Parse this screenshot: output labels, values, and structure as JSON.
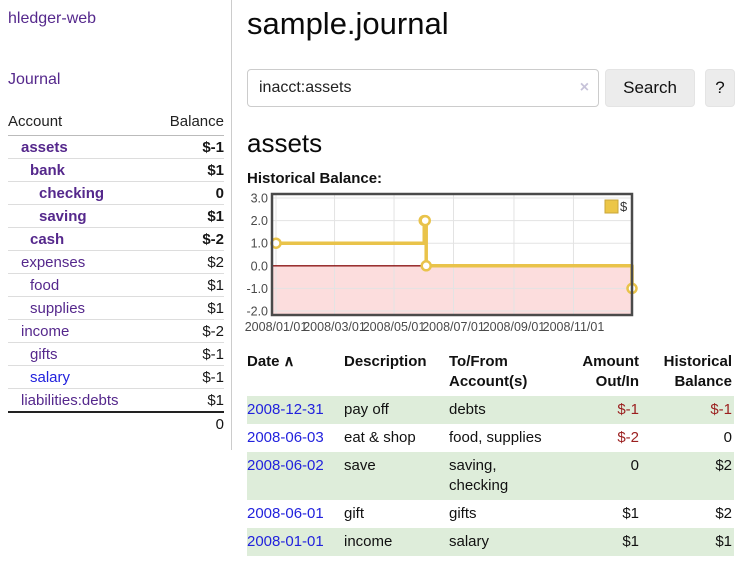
{
  "app": {
    "title": "hledger-web",
    "nav_journal_label": "Journal"
  },
  "sidebar": {
    "accounts_header": {
      "account": "Account",
      "balance": "Balance"
    },
    "accounts": [
      {
        "name": "assets",
        "depth": 1,
        "bold": true,
        "balance": "$-1",
        "link_color": "purple"
      },
      {
        "name": "bank",
        "depth": 2,
        "bold": true,
        "balance": "$1",
        "link_color": "purple"
      },
      {
        "name": "checking",
        "depth": 3,
        "bold": true,
        "balance": "0",
        "link_color": "purple"
      },
      {
        "name": "saving",
        "depth": 3,
        "bold": true,
        "balance": "$1",
        "link_color": "purple"
      },
      {
        "name": "cash",
        "depth": 2,
        "bold": true,
        "balance": "$-2",
        "link_color": "purple"
      },
      {
        "name": "expenses",
        "depth": 1,
        "bold": false,
        "balance": "$2",
        "link_color": "purple"
      },
      {
        "name": "food",
        "depth": 2,
        "bold": false,
        "balance": "$1",
        "link_color": "purple"
      },
      {
        "name": "supplies",
        "depth": 2,
        "bold": false,
        "balance": "$1",
        "link_color": "purple"
      },
      {
        "name": "income",
        "depth": 1,
        "bold": false,
        "balance": "$-2",
        "link_color": "purple"
      },
      {
        "name": "gifts",
        "depth": 2,
        "bold": false,
        "balance": "$-1",
        "link_color": "purple"
      },
      {
        "name": "salary",
        "depth": 2,
        "bold": false,
        "balance": "$-1",
        "link_color": "blue"
      },
      {
        "name": "liabilities:debts",
        "depth": 1,
        "bold": false,
        "balance": "$1",
        "link_color": "purple"
      }
    ],
    "total": "0"
  },
  "header": {
    "title": "sample.journal"
  },
  "search": {
    "value": "inacct:assets",
    "clear_icon": "×",
    "button_label": "Search",
    "help_label": "?"
  },
  "account_page": {
    "heading": "assets",
    "chart_label": "Historical Balance:"
  },
  "chart_data": {
    "type": "line",
    "title": "Historical Balance:",
    "step": true,
    "series": [
      {
        "name": "$",
        "color": "#e9c34a",
        "points": [
          [
            "2008-01-01",
            1
          ],
          [
            "2008-06-01",
            2
          ],
          [
            "2008-06-02",
            2
          ],
          [
            "2008-06-03",
            0
          ],
          [
            "2008-12-31",
            -1
          ]
        ]
      }
    ],
    "ylim": [
      -2,
      3
    ],
    "yticks": [
      3,
      2,
      1,
      0,
      -1,
      -2
    ],
    "xticks": [
      "2008/01/01",
      "2008/03/01",
      "2008/05/01",
      "2008/07/01",
      "2008/09/01",
      "2008/11/01"
    ],
    "x_range": [
      "2008-01-01",
      "2008-12-31"
    ],
    "grid": true,
    "negative_region_fill": "#fcdddd",
    "zero_line_color": "#8b1515",
    "axis_label_color": "#4a4a4a",
    "legend": {
      "label": "$",
      "position": "top-right",
      "swatch_fill": "#ecc647",
      "swatch_border": "#c9a63a"
    }
  },
  "register": {
    "columns": [
      "Date",
      "Description",
      "To/From Account(s)",
      "Amount Out/In",
      "Historical Balance"
    ],
    "sort_ascending_icon": "∧",
    "rows": [
      {
        "date": "2008-12-31",
        "description": "pay off",
        "accounts": "debts",
        "amount": "$-1",
        "balance": "$-1"
      },
      {
        "date": "2008-06-03",
        "description": "eat & shop",
        "accounts": "food, supplies",
        "amount": "$-2",
        "balance": "0"
      },
      {
        "date": "2008-06-02",
        "description": "save",
        "accounts": "saving, checking",
        "amount": "0",
        "balance": "$2"
      },
      {
        "date": "2008-06-01",
        "description": "gift",
        "accounts": "gifts",
        "amount": "$1",
        "balance": "$2"
      },
      {
        "date": "2008-01-01",
        "description": "income",
        "accounts": "salary",
        "amount": "$1",
        "balance": "$1"
      }
    ]
  },
  "colors": {
    "link_purple": "#55288c",
    "link_blue": "#2222dd",
    "negative_strong": "#961414",
    "negative_soft": "#c26c6c",
    "table_negative": "#9b1f1f",
    "row_stripe_green": "#deedda"
  }
}
